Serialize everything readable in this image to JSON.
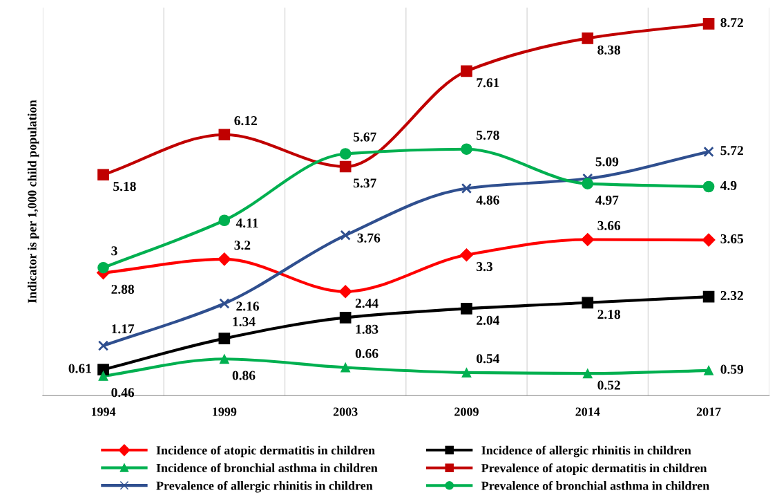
{
  "chart_data": {
    "type": "line",
    "ylabel": "Indicator is per 1,000 child population",
    "categories": [
      "1994",
      "1999",
      "2003",
      "2009",
      "2014",
      "2017"
    ],
    "ylim": [
      0,
      9.1
    ],
    "tick_labels": "x",
    "grid": "x",
    "legend": "bottom",
    "data_labels": true,
    "line_style": "solid",
    "series": [
      {
        "name": "Incidence of atopic dermatitis in children",
        "color": "#ff0000",
        "marker": "diamond",
        "values": [
          2.88,
          3.2,
          2.44,
          3.3,
          3.66,
          3.65
        ]
      },
      {
        "name": "Incidence of allergic rhinitis in children",
        "color": "#000000",
        "marker": "square",
        "values": [
          0.61,
          1.34,
          1.83,
          2.04,
          2.18,
          2.32
        ]
      },
      {
        "name": "Incidence of bronchial asthma in children",
        "color": "#00b050",
        "marker": "triangle",
        "values": [
          0.46,
          0.86,
          0.66,
          0.54,
          0.52,
          0.59
        ]
      },
      {
        "name": "Prevalence of atopic dermatitis in children",
        "color": "#c00000",
        "marker": "square",
        "values": [
          5.18,
          6.12,
          5.37,
          7.61,
          8.38,
          8.72
        ]
      },
      {
        "name": "Prevalence of allergic rhinitis in children",
        "color": "#2f4f8f",
        "marker": "cross",
        "values": [
          1.17,
          2.16,
          3.76,
          4.86,
          5.09,
          5.72
        ]
      },
      {
        "name": "Prevalence of bronchial asthma in children",
        "color": "#00b050",
        "marker": "circle",
        "values": [
          3,
          4.11,
          5.67,
          5.78,
          4.97,
          4.9
        ]
      }
    ]
  }
}
